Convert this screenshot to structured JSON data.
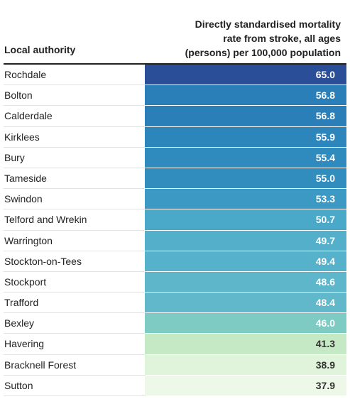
{
  "header": {
    "left_label": "Local authority",
    "right_line1": "Directly standardised mortality",
    "right_line2": "rate from stroke, all ages",
    "right_line3": "(persons) per 100,000 population"
  },
  "chart_data": {
    "type": "table",
    "columns": [
      "Local authority",
      "Directly standardised mortality rate from stroke, all ages (persons) per 100,000 population"
    ],
    "rows": [
      {
        "authority": "Rochdale",
        "value": "65.0",
        "color": "#2a4f98",
        "text": "#ffffff"
      },
      {
        "authority": "Bolton",
        "value": "56.8",
        "color": "#2a7fb8",
        "text": "#ffffff"
      },
      {
        "authority": "Calderdale",
        "value": "56.8",
        "color": "#2a7fb8",
        "text": "#ffffff"
      },
      {
        "authority": "Kirklees",
        "value": "55.9",
        "color": "#2c86bb",
        "text": "#ffffff"
      },
      {
        "authority": "Bury",
        "value": "55.4",
        "color": "#2f8abd",
        "text": "#ffffff"
      },
      {
        "authority": "Tameside",
        "value": "55.0",
        "color": "#318dbe",
        "text": "#ffffff"
      },
      {
        "authority": "Swindon",
        "value": "53.3",
        "color": "#3b99c4",
        "text": "#ffffff"
      },
      {
        "authority": "Telford and Wrekin",
        "value": "50.7",
        "color": "#4aa8c9",
        "text": "#ffffff"
      },
      {
        "authority": "Warrington",
        "value": "49.7",
        "color": "#54afca",
        "text": "#ffffff"
      },
      {
        "authority": "Stockton-on-Tees",
        "value": "49.4",
        "color": "#56b1cb",
        "text": "#ffffff"
      },
      {
        "authority": "Stockport",
        "value": "48.6",
        "color": "#5db6ca",
        "text": "#ffffff"
      },
      {
        "authority": "Trafford",
        "value": "48.4",
        "color": "#60b8ca",
        "text": "#ffffff"
      },
      {
        "authority": "Bexley",
        "value": "46.0",
        "color": "#7ecbc4",
        "text": "#ffffff"
      },
      {
        "authority": "Havering",
        "value": "41.3",
        "color": "#c5e9c5",
        "text": "#333333"
      },
      {
        "authority": "Bracknell Forest",
        "value": "38.9",
        "color": "#e0f3db",
        "text": "#333333"
      },
      {
        "authority": "Sutton",
        "value": "37.9",
        "color": "#eef8e9",
        "text": "#333333"
      }
    ]
  }
}
